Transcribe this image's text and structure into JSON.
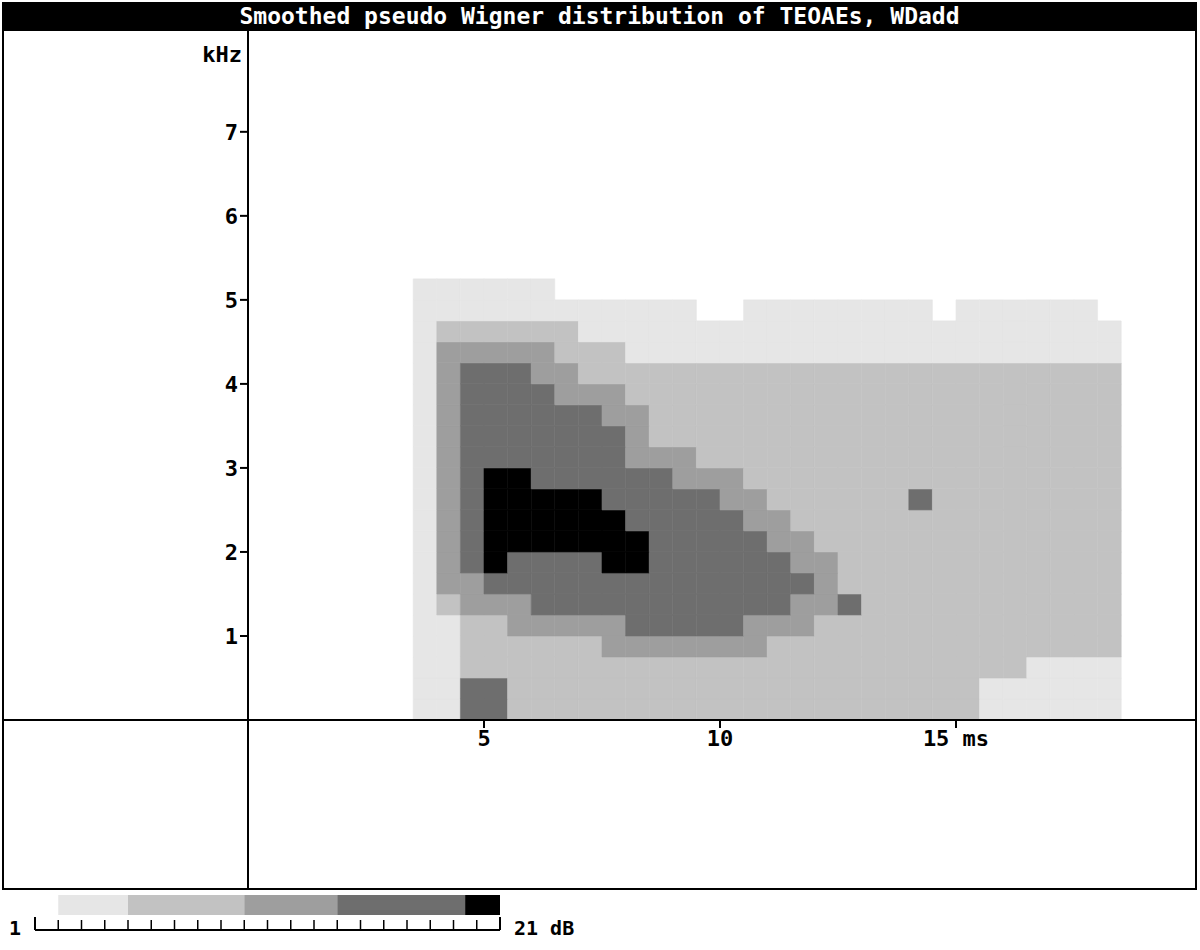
{
  "chart_data": {
    "type": "heatmap",
    "title": "Smoothed pseudo Wigner distribution of TEOAEs, WDadd",
    "y_label": "kHz",
    "xlim": [
      0,
      20
    ],
    "ylim": [
      0,
      8.2
    ],
    "xticks": [
      5,
      10,
      {
        "value": 15,
        "label": "15 ms"
      }
    ],
    "yticks": [
      1,
      2,
      3,
      4,
      5,
      6,
      7
    ],
    "cells": {
      "x_edges": [
        3.5,
        4,
        4.5,
        5,
        5.5,
        6,
        6.5,
        7,
        7.5,
        8,
        8.5,
        9,
        9.5,
        10,
        10.5,
        11,
        11.5,
        12,
        12.5,
        13,
        13.5,
        14,
        14.5,
        15,
        15.5,
        16,
        16.5,
        17,
        17.5,
        18,
        18.5
      ],
      "y_edges": [
        0,
        0.25,
        0.5,
        0.75,
        1,
        1.25,
        1.5,
        1.75,
        2,
        2.25,
        2.5,
        2.75,
        3,
        3.25,
        3.5,
        3.75,
        4,
        4.25,
        4.5,
        4.75,
        5,
        5.25
      ],
      "values": [
        [
          3,
          3,
          17,
          17,
          7,
          7,
          7,
          7,
          7,
          7,
          7,
          7,
          7,
          7,
          7,
          7,
          7,
          7,
          7,
          7,
          7,
          7,
          7,
          7,
          3,
          3,
          3,
          3,
          3,
          3
        ],
        [
          3,
          3,
          17,
          17,
          7,
          7,
          7,
          7,
          7,
          7,
          7,
          7,
          7,
          7,
          7,
          7,
          7,
          7,
          7,
          7,
          7,
          7,
          7,
          7,
          3,
          3,
          3,
          3,
          3,
          3
        ],
        [
          3,
          3,
          7,
          7,
          7,
          7,
          7,
          7,
          7,
          7,
          7,
          7,
          7,
          7,
          7,
          7,
          7,
          7,
          7,
          7,
          7,
          7,
          7,
          7,
          7,
          7,
          3,
          3,
          3,
          3
        ],
        [
          3,
          3,
          7,
          7,
          7,
          7,
          7,
          7,
          12,
          12,
          12,
          12,
          12,
          12,
          12,
          7,
          7,
          7,
          7,
          7,
          7,
          7,
          7,
          7,
          7,
          7,
          7,
          7,
          7,
          7
        ],
        [
          3,
          3,
          7,
          7,
          12,
          12,
          12,
          12,
          12,
          17,
          17,
          17,
          17,
          17,
          12,
          12,
          12,
          7,
          7,
          7,
          7,
          7,
          7,
          7,
          7,
          7,
          7,
          7,
          7,
          7
        ],
        [
          3,
          7,
          12,
          12,
          12,
          17,
          17,
          17,
          17,
          17,
          17,
          17,
          17,
          17,
          17,
          17,
          12,
          12,
          17,
          7,
          7,
          7,
          7,
          7,
          7,
          7,
          7,
          7,
          7,
          7
        ],
        [
          3,
          12,
          12,
          17,
          17,
          17,
          17,
          17,
          17,
          17,
          17,
          17,
          17,
          17,
          17,
          17,
          17,
          12,
          7,
          7,
          7,
          7,
          7,
          7,
          7,
          7,
          7,
          7,
          7,
          7
        ],
        [
          3,
          12,
          17,
          20,
          17,
          17,
          17,
          17,
          20,
          20,
          17,
          17,
          17,
          17,
          17,
          17,
          12,
          12,
          7,
          7,
          7,
          7,
          7,
          7,
          7,
          7,
          7,
          7,
          7,
          7
        ],
        [
          3,
          12,
          17,
          20,
          20,
          20,
          20,
          20,
          20,
          20,
          17,
          17,
          17,
          17,
          17,
          12,
          12,
          7,
          7,
          7,
          7,
          7,
          7,
          7,
          7,
          7,
          7,
          7,
          7,
          7
        ],
        [
          3,
          12,
          17,
          20,
          20,
          20,
          20,
          20,
          20,
          17,
          17,
          17,
          17,
          17,
          12,
          12,
          7,
          7,
          7,
          7,
          7,
          7,
          7,
          7,
          7,
          7,
          7,
          7,
          7,
          7
        ],
        [
          3,
          12,
          17,
          20,
          20,
          20,
          20,
          20,
          17,
          17,
          17,
          17,
          17,
          12,
          12,
          7,
          7,
          7,
          7,
          7,
          7,
          17,
          7,
          7,
          7,
          7,
          7,
          7,
          7,
          7
        ],
        [
          3,
          12,
          17,
          20,
          20,
          17,
          17,
          17,
          17,
          17,
          17,
          12,
          12,
          12,
          7,
          7,
          7,
          7,
          7,
          7,
          7,
          7,
          7,
          7,
          7,
          7,
          7,
          7,
          7,
          7
        ],
        [
          3,
          12,
          17,
          17,
          17,
          17,
          17,
          17,
          17,
          12,
          12,
          12,
          7,
          7,
          7,
          7,
          7,
          7,
          7,
          7,
          7,
          7,
          7,
          7,
          7,
          7,
          7,
          7,
          7,
          7
        ],
        [
          3,
          12,
          17,
          17,
          17,
          17,
          17,
          17,
          17,
          12,
          7,
          7,
          7,
          7,
          7,
          7,
          7,
          7,
          7,
          7,
          7,
          7,
          7,
          7,
          7,
          7,
          7,
          7,
          7,
          7
        ],
        [
          3,
          12,
          17,
          17,
          17,
          17,
          17,
          17,
          12,
          12,
          7,
          7,
          7,
          7,
          7,
          7,
          7,
          7,
          7,
          7,
          7,
          7,
          7,
          7,
          7,
          7,
          7,
          7,
          7,
          7
        ],
        [
          3,
          12,
          17,
          17,
          17,
          17,
          12,
          12,
          12,
          7,
          7,
          7,
          7,
          7,
          7,
          7,
          7,
          7,
          7,
          7,
          7,
          7,
          7,
          7,
          7,
          7,
          7,
          7,
          7,
          7
        ],
        [
          3,
          12,
          17,
          17,
          17,
          12,
          12,
          7,
          7,
          7,
          7,
          7,
          7,
          7,
          7,
          7,
          7,
          7,
          7,
          7,
          7,
          7,
          7,
          7,
          7,
          7,
          7,
          7,
          7,
          7
        ],
        [
          3,
          12,
          12,
          12,
          12,
          12,
          7,
          7,
          7,
          3,
          3,
          3,
          3,
          3,
          3,
          3,
          3,
          3,
          3,
          3,
          3,
          3,
          3,
          3,
          3,
          3,
          3,
          3,
          3,
          3
        ],
        [
          3,
          7,
          7,
          7,
          7,
          7,
          7,
          3,
          3,
          3,
          3,
          3,
          3,
          3,
          3,
          3,
          3,
          3,
          3,
          3,
          3,
          3,
          3,
          3,
          3,
          3,
          3,
          3,
          3,
          3
        ],
        [
          3,
          3,
          3,
          3,
          3,
          3,
          3,
          3,
          3,
          3,
          3,
          3,
          1,
          1,
          3,
          3,
          3,
          3,
          3,
          3,
          3,
          3,
          1,
          3,
          3,
          3,
          3,
          3,
          3,
          1
        ],
        [
          3,
          3,
          3,
          3,
          3,
          3,
          1,
          1,
          1,
          1,
          1,
          1,
          1,
          1,
          1,
          1,
          1,
          1,
          1,
          1,
          1,
          1,
          1,
          1,
          1,
          1,
          1,
          1,
          1,
          1
        ]
      ]
    },
    "colorbar": {
      "range": [
        1,
        21
      ],
      "ticks": [
        1,
        {
          "value": 21,
          "label": "21 dB"
        }
      ],
      "minor_ticks": [
        2,
        3,
        4,
        5,
        6,
        7,
        8,
        9,
        10,
        11,
        12,
        13,
        14,
        15,
        16,
        17,
        18,
        19,
        20
      ],
      "levels": [
        2,
        5,
        10,
        14,
        19.5,
        21
      ],
      "colors": [
        "#e6e6e6",
        "#c2c2c2",
        "#9e9e9e",
        "#6e6e6e",
        "#000000"
      ]
    }
  }
}
